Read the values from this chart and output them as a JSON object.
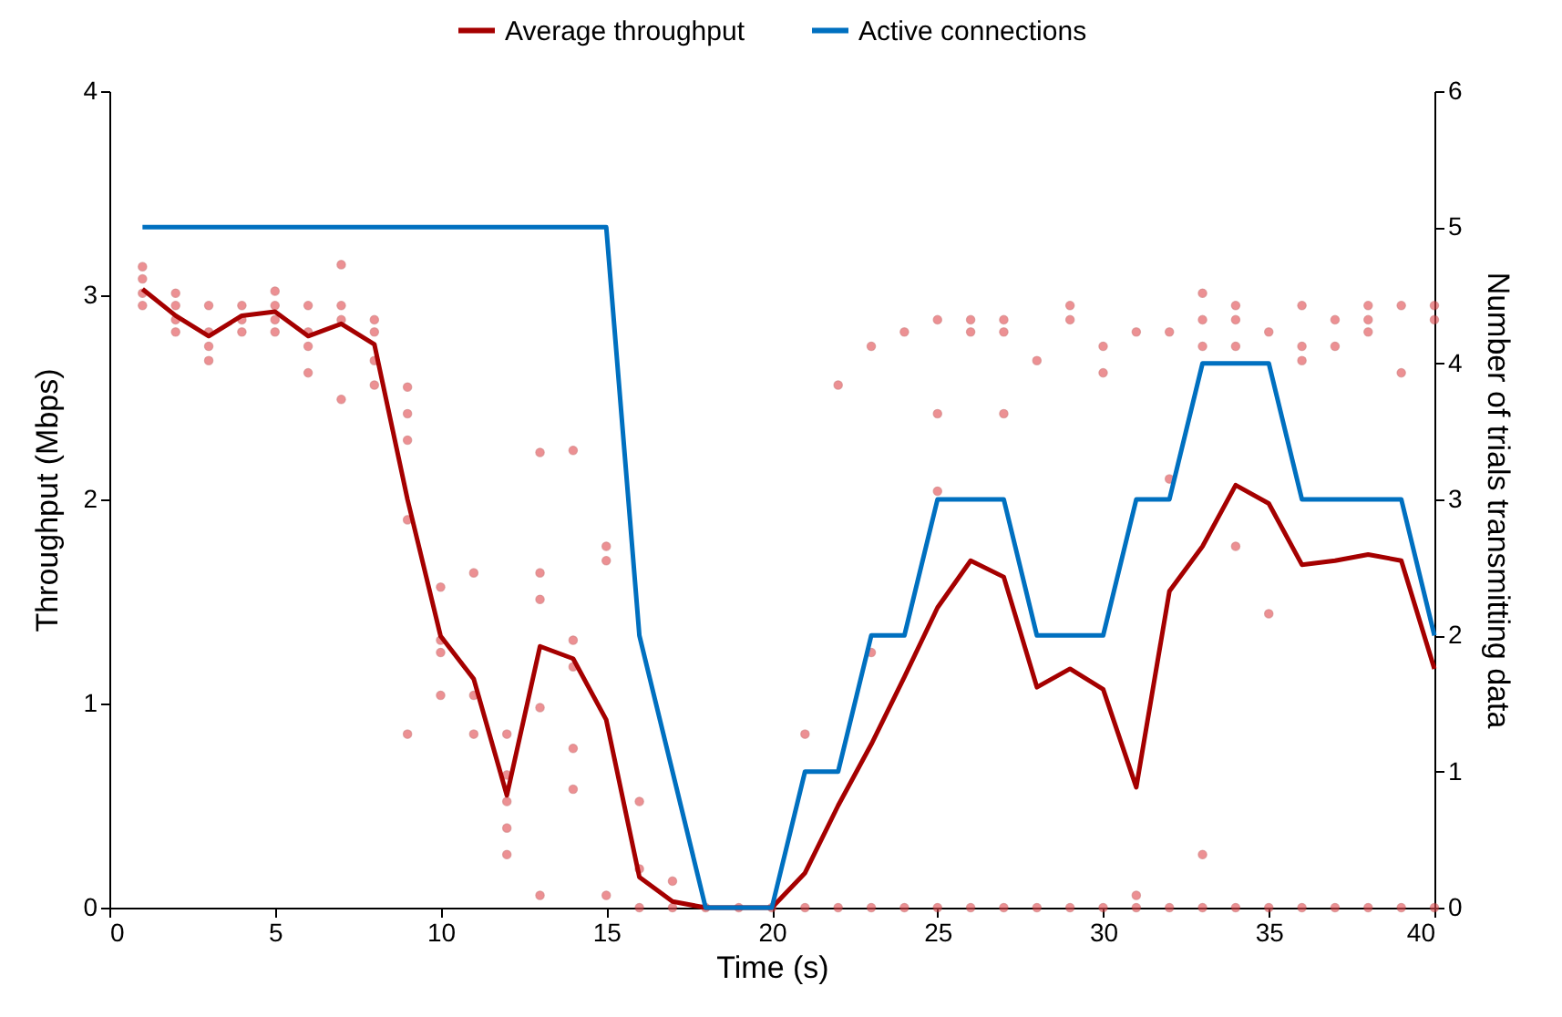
{
  "chart_data": {
    "type": "line",
    "xlabel": "Time (s)",
    "ylabel": "Throughput (Mbps)",
    "y2label": "Number of trials transmitting data",
    "x": [
      1,
      2,
      3,
      4,
      5,
      6,
      7,
      8,
      9,
      10,
      11,
      12,
      13,
      14,
      15,
      16,
      17,
      18,
      19,
      20,
      21,
      22,
      23,
      24,
      25,
      26,
      27,
      28,
      29,
      30,
      31,
      32,
      33,
      34,
      35,
      36,
      37,
      38,
      39,
      40
    ],
    "xlim": [
      0,
      40
    ],
    "xticks": [
      0,
      5,
      10,
      15,
      20,
      25,
      30,
      35,
      40
    ],
    "ylim": [
      0,
      4
    ],
    "yticks": [
      0,
      1,
      2,
      3,
      4
    ],
    "y2lim": [
      0,
      6
    ],
    "y2ticks": [
      0,
      1,
      2,
      3,
      4,
      5,
      6
    ],
    "grid": false,
    "legend": "top",
    "series": [
      {
        "type": "scatter",
        "color": "#e0474c",
        "x": [
          1,
          1,
          1,
          1,
          2,
          2,
          2,
          2,
          3,
          3,
          3,
          3,
          4,
          4,
          4,
          5,
          5,
          5,
          5,
          6,
          6,
          6,
          6,
          7,
          7,
          7,
          7,
          8,
          8,
          8,
          8,
          9,
          9,
          9,
          9,
          9,
          10,
          10,
          10,
          10,
          11,
          11,
          11,
          12,
          12,
          12,
          12,
          12,
          13,
          13,
          13,
          13,
          13,
          14,
          14,
          14,
          14,
          14,
          15,
          15,
          15,
          16,
          16,
          16,
          17,
          17,
          18,
          19,
          20,
          21,
          21,
          22,
          22,
          23,
          23,
          23,
          24,
          24,
          25,
          25,
          25,
          25,
          26,
          26,
          26,
          27,
          27,
          27,
          27,
          28,
          28,
          29,
          29,
          29,
          30,
          30,
          30,
          31,
          31,
          31,
          32,
          32,
          32,
          33,
          33,
          33,
          33,
          33,
          34,
          34,
          34,
          34,
          34,
          35,
          35,
          35,
          36,
          36,
          36,
          36,
          37,
          37,
          37,
          38,
          38,
          38,
          38,
          39,
          39,
          39,
          40,
          40,
          40
        ],
        "values": [
          3.14,
          3.08,
          3.01,
          2.95,
          3.01,
          2.95,
          2.88,
          2.82,
          2.95,
          2.82,
          2.75,
          2.68,
          2.95,
          2.88,
          2.82,
          3.02,
          2.95,
          2.88,
          2.82,
          2.95,
          2.82,
          2.75,
          2.62,
          3.15,
          2.95,
          2.88,
          2.49,
          2.88,
          2.82,
          2.68,
          2.56,
          2.55,
          2.42,
          2.29,
          1.9,
          0.85,
          1.57,
          1.31,
          1.25,
          1.04,
          1.64,
          1.04,
          0.85,
          0.85,
          0.65,
          0.52,
          0.39,
          0.26,
          2.23,
          1.64,
          1.51,
          0.98,
          0.06,
          2.24,
          1.31,
          1.18,
          0.78,
          0.58,
          1.77,
          1.7,
          0.06,
          0.52,
          0.19,
          0,
          0.13,
          0,
          0,
          0,
          0,
          0.85,
          0,
          2.56,
          0,
          2.75,
          1.25,
          0,
          2.82,
          0,
          2.88,
          2.42,
          2.04,
          0,
          2.88,
          2.82,
          0,
          2.88,
          2.82,
          2.42,
          0,
          2.68,
          0,
          2.95,
          2.88,
          0,
          2.75,
          2.62,
          0,
          2.82,
          0.06,
          0,
          2.82,
          2.1,
          0,
          3.01,
          2.88,
          2.75,
          0.26,
          0,
          2.95,
          2.88,
          2.75,
          1.77,
          0,
          2.82,
          1.44,
          0,
          2.95,
          2.75,
          2.68,
          0,
          2.88,
          2.75,
          0,
          2.95,
          2.88,
          2.82,
          0,
          2.95,
          2.62,
          0,
          2.95,
          2.88,
          0
        ]
      },
      {
        "name": "Average throughput",
        "color": "#a50000",
        "values": [
          3.03,
          2.9,
          2.8,
          2.9,
          2.92,
          2.8,
          2.86,
          2.76,
          2.0,
          1.33,
          1.12,
          0.55,
          1.28,
          1.22,
          0.92,
          0.15,
          0.03,
          0,
          0,
          0,
          0.17,
          0.5,
          0.8,
          1.13,
          1.47,
          1.7,
          1.62,
          1.08,
          1.17,
          1.07,
          0.59,
          1.55,
          1.77,
          2.07,
          1.98,
          1.68,
          1.7,
          1.73,
          1.7,
          1.17
        ]
      },
      {
        "name": "Active connections",
        "color": "#0070c0",
        "axis": "y2",
        "values": [
          5,
          5,
          5,
          5,
          5,
          5,
          5,
          5,
          5,
          5,
          5,
          5,
          5,
          5,
          5,
          2,
          1,
          0,
          0,
          0,
          1,
          1,
          2,
          2,
          3,
          3,
          3,
          2,
          2,
          2,
          3,
          3,
          4,
          4,
          4,
          3,
          3,
          3,
          3,
          2
        ]
      }
    ]
  }
}
